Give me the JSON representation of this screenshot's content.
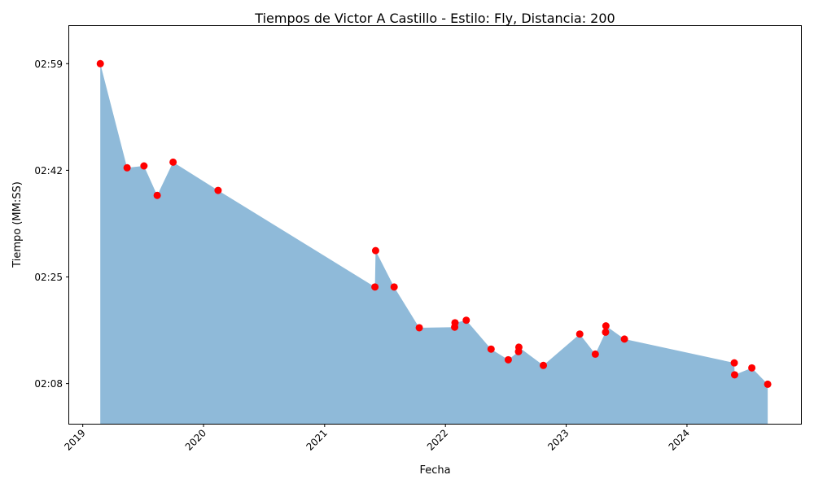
{
  "chart_data": {
    "type": "area",
    "title": "Tiempos de Victor A Castillo - Estilo: Fly, Distancia: 200",
    "xlabel": "Fecha",
    "ylabel": "Tiempo (MM:SS)",
    "x_ticks": [
      "2019",
      "2020",
      "2021",
      "2022",
      "2023",
      "2024"
    ],
    "y_ticks": [
      "02:08",
      "02:25",
      "02:42",
      "02:59"
    ],
    "xlim": [
      "2018-11-21",
      "2024-12-13"
    ],
    "ylim": [
      "02:01.6",
      "03:05.0"
    ],
    "grid": false,
    "legend": "none",
    "colors": {
      "area": "#8fbad9",
      "points": "#ff0000"
    },
    "points": [
      {
        "date": "2019-02-23",
        "time": "02:59.0"
      },
      {
        "date": "2019-05-15",
        "time": "02:42.4"
      },
      {
        "date": "2019-07-05",
        "time": "02:42.7"
      },
      {
        "date": "2019-08-14",
        "time": "02:38.0"
      },
      {
        "date": "2019-10-01",
        "time": "02:43.3"
      },
      {
        "date": "2020-02-14",
        "time": "02:38.8"
      },
      {
        "date": "2021-06-02",
        "time": "02:23.4"
      },
      {
        "date": "2021-06-04",
        "time": "02:29.2"
      },
      {
        "date": "2021-07-30",
        "time": "02:23.4"
      },
      {
        "date": "2021-10-14",
        "time": "02:16.9"
      },
      {
        "date": "2022-01-29",
        "time": "02:17.0"
      },
      {
        "date": "2022-01-30",
        "time": "02:17.7"
      },
      {
        "date": "2022-03-05",
        "time": "02:18.1"
      },
      {
        "date": "2022-05-19",
        "time": "02:13.5"
      },
      {
        "date": "2022-07-10",
        "time": "02:11.8"
      },
      {
        "date": "2022-08-10",
        "time": "02:13.1"
      },
      {
        "date": "2022-08-11",
        "time": "02:13.8"
      },
      {
        "date": "2022-10-24",
        "time": "02:10.9"
      },
      {
        "date": "2023-02-11",
        "time": "02:15.9"
      },
      {
        "date": "2023-03-30",
        "time": "02:12.7"
      },
      {
        "date": "2023-04-30",
        "time": "02:16.2"
      },
      {
        "date": "2023-05-01",
        "time": "02:17.2"
      },
      {
        "date": "2023-06-26",
        "time": "02:15.1"
      },
      {
        "date": "2024-05-23",
        "time": "02:11.3"
      },
      {
        "date": "2024-05-24",
        "time": "02:09.4"
      },
      {
        "date": "2024-07-15",
        "time": "02:10.5"
      },
      {
        "date": "2024-09-01",
        "time": "02:07.9"
      }
    ]
  }
}
